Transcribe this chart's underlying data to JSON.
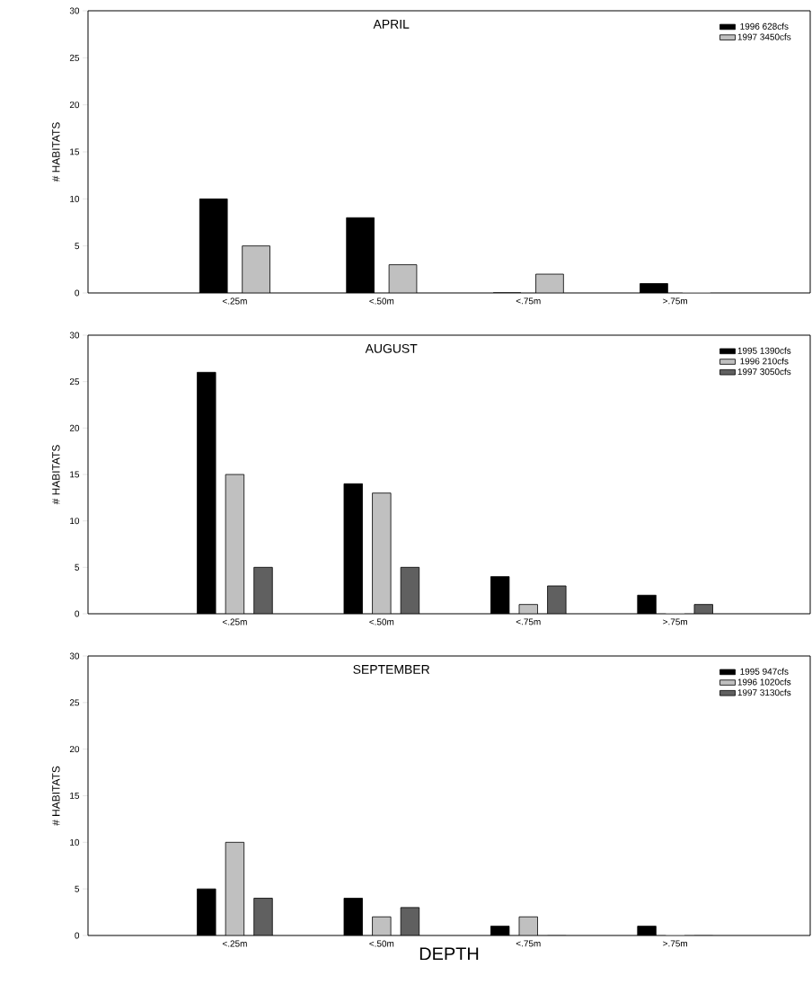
{
  "chart_data": [
    {
      "type": "bar",
      "title": "APRIL",
      "ylabel": "# HABITATS",
      "categories": [
        "<.25m",
        "<.50m",
        "<.75m",
        ">.75m"
      ],
      "series": [
        {
          "name": "1996 628cfs",
          "color": "#000000",
          "values": [
            10,
            8,
            0,
            1
          ]
        },
        {
          "name": "1997 3450cfs",
          "color": "#c0c0c0",
          "values": [
            5,
            3,
            2,
            0
          ]
        }
      ],
      "ylim": [
        0,
        30
      ],
      "yticks": [
        0,
        5,
        10,
        15,
        20,
        25,
        30
      ],
      "legend": "top right"
    },
    {
      "type": "bar",
      "title": "AUGUST",
      "ylabel": "# HABITATS",
      "categories": [
        "<.25m",
        "<.50m",
        "<.75m",
        ">.75m"
      ],
      "series": [
        {
          "name": "1995 1390cfs",
          "color": "#000000",
          "values": [
            26,
            14,
            4,
            2
          ]
        },
        {
          "name": "1996 210cfs",
          "color": "#c0c0c0",
          "values": [
            15,
            13,
            1,
            0
          ]
        },
        {
          "name": "1997 3050cfs",
          "color": "#606060",
          "values": [
            5,
            5,
            3,
            1
          ]
        }
      ],
      "ylim": [
        0,
        30
      ],
      "yticks": [
        0,
        5,
        10,
        15,
        20,
        25,
        30
      ],
      "legend": "top right"
    },
    {
      "type": "bar",
      "title": "SEPTEMBER",
      "ylabel": "# HABITATS",
      "xlabel": "DEPTH",
      "categories": [
        "<.25m",
        "<.50m",
        "<.75m",
        ">.75m"
      ],
      "series": [
        {
          "name": "1995 947cfs",
          "color": "#000000",
          "values": [
            5,
            4,
            1,
            1
          ]
        },
        {
          "name": "1996 1020cfs",
          "color": "#c0c0c0",
          "values": [
            10,
            2,
            2,
            0
          ]
        },
        {
          "name": "1997 3130cfs",
          "color": "#606060",
          "values": [
            4,
            3,
            0,
            0
          ]
        }
      ],
      "ylim": [
        0,
        30
      ],
      "yticks": [
        0,
        5,
        10,
        15,
        20,
        25,
        30
      ],
      "legend": "top right"
    }
  ]
}
